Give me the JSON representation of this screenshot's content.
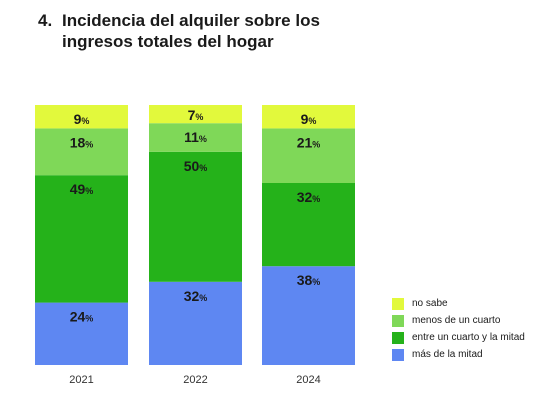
{
  "title": {
    "number": "4.",
    "text": "Incidencia del alquiler sobre los ingresos totales del hogar"
  },
  "colors": {
    "no_sabe": "#e2f93c",
    "menos_cuarto": "#7fd858",
    "entre_cuarto_mitad": "#25b21a",
    "mas_mitad": "#5e87f2"
  },
  "legend": [
    {
      "key": "no_sabe",
      "label": "no sabe"
    },
    {
      "key": "menos_cuarto",
      "label": "menos de un cuarto"
    },
    {
      "key": "entre_cuarto_mitad",
      "label": "entre un cuarto y la mitad"
    },
    {
      "key": "mas_mitad",
      "label": "más de la mitad"
    }
  ],
  "chart_data": {
    "type": "bar",
    "stacked": true,
    "percent_stacked": true,
    "categories": [
      "2021",
      "2022",
      "2024"
    ],
    "series": [
      {
        "key": "mas_mitad",
        "name": "más de la mitad",
        "values": [
          24,
          32,
          38
        ]
      },
      {
        "key": "entre_cuarto_mitad",
        "name": "entre un cuarto y la mitad",
        "values": [
          49,
          50,
          32
        ]
      },
      {
        "key": "menos_cuarto",
        "name": "menos de un cuarto",
        "values": [
          18,
          11,
          21
        ]
      },
      {
        "key": "no_sabe",
        "name": "no sabe",
        "values": [
          9,
          7,
          9
        ]
      }
    ],
    "value_suffix": "%",
    "legend_position": "bottom-right",
    "grid": false
  }
}
